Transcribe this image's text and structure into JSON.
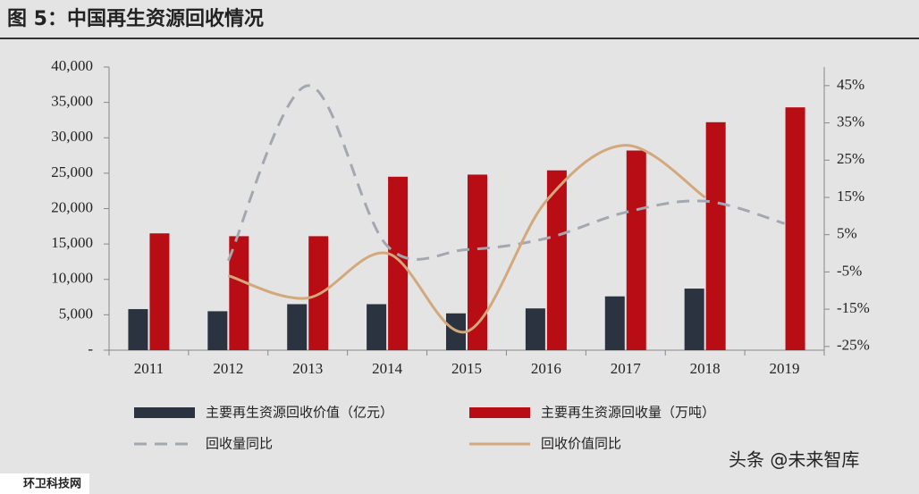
{
  "chart_data": {
    "type": "bar",
    "title": "图 5：中国再生资源回收情况",
    "categories": [
      "2011",
      "2012",
      "2013",
      "2014",
      "2015",
      "2016",
      "2017",
      "2018",
      "2019"
    ],
    "series": [
      {
        "name": "主要再生资源回收价值（亿元）",
        "type": "bar",
        "color": "#2c3340",
        "values": [
          5800,
          5500,
          6500,
          6500,
          5200,
          5900,
          7600,
          8700,
          null
        ]
      },
      {
        "name": "主要再生资源回收量（万吨）",
        "type": "bar",
        "color": "#b80d14",
        "values": [
          16500,
          16100,
          16100,
          24500,
          24800,
          25400,
          28200,
          32200,
          34300
        ]
      },
      {
        "name": "回收量同比",
        "type": "line",
        "axis": "y2",
        "line_style": "dashed",
        "color": "#a3a8b0",
        "values": [
          null,
          -2,
          45,
          2,
          1,
          4,
          11,
          14,
          8
        ]
      },
      {
        "name": "回收价值同比",
        "type": "line",
        "axis": "y2",
        "line_style": "solid",
        "color": "#d2a87c",
        "values": [
          null,
          -6,
          -12,
          0,
          -21,
          14,
          29,
          15,
          null
        ]
      }
    ],
    "ylim": [
      0,
      40000
    ],
    "yticks": [
      {
        "value": 0,
        "label": "-"
      },
      {
        "value": 5000,
        "label": "5,000"
      },
      {
        "value": 10000,
        "label": "10,000"
      },
      {
        "value": 15000,
        "label": "15,000"
      },
      {
        "value": 20000,
        "label": "20,000"
      },
      {
        "value": 25000,
        "label": "25,000"
      },
      {
        "value": 30000,
        "label": "30,000"
      },
      {
        "value": 35000,
        "label": "35,000"
      },
      {
        "value": 40000,
        "label": "40,000"
      }
    ],
    "y2lim": [
      -26,
      50
    ],
    "y2ticks": [
      {
        "value": -25,
        "label": "-25%"
      },
      {
        "value": -15,
        "label": "-15%"
      },
      {
        "value": -5,
        "label": "-5%"
      },
      {
        "value": 5,
        "label": "5%"
      },
      {
        "value": 15,
        "label": "15%"
      },
      {
        "value": 25,
        "label": "25%"
      },
      {
        "value": 35,
        "label": "35%"
      },
      {
        "value": 45,
        "label": "45%"
      }
    ],
    "watermarks": [
      "头条 @未来智库",
      "环卫科技网"
    ]
  }
}
